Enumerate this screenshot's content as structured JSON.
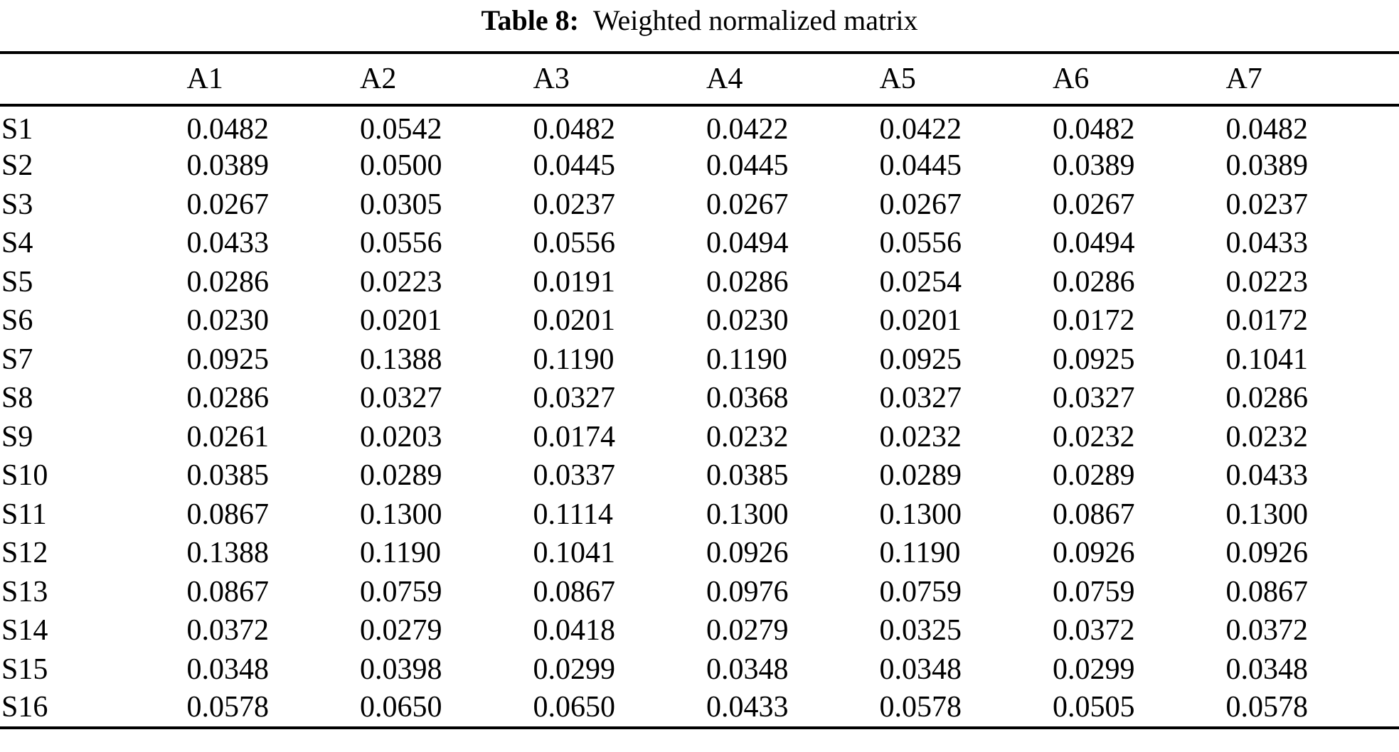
{
  "table": {
    "caption": {
      "label": "Table 8:",
      "text": "Weighted normalized matrix"
    },
    "columns": [
      "A1",
      "A2",
      "A3",
      "A4",
      "A5",
      "A6",
      "A7"
    ],
    "rows": [
      {
        "label": "S1",
        "values": [
          "0.0482",
          "0.0542",
          "0.0482",
          "0.0422",
          "0.0422",
          "0.0482",
          "0.0482"
        ]
      },
      {
        "label": "S2",
        "values": [
          "0.0389",
          "0.0500",
          "0.0445",
          "0.0445",
          "0.0445",
          "0.0389",
          "0.0389"
        ]
      },
      {
        "label": "S3",
        "values": [
          "0.0267",
          "0.0305",
          "0.0237",
          "0.0267",
          "0.0267",
          "0.0267",
          "0.0237"
        ]
      },
      {
        "label": "S4",
        "values": [
          "0.0433",
          "0.0556",
          "0.0556",
          "0.0494",
          "0.0556",
          "0.0494",
          "0.0433"
        ]
      },
      {
        "label": "S5",
        "values": [
          "0.0286",
          "0.0223",
          "0.0191",
          "0.0286",
          "0.0254",
          "0.0286",
          "0.0223"
        ]
      },
      {
        "label": "S6",
        "values": [
          "0.0230",
          "0.0201",
          "0.0201",
          "0.0230",
          "0.0201",
          "0.0172",
          "0.0172"
        ]
      },
      {
        "label": "S7",
        "values": [
          "0.0925",
          "0.1388",
          "0.1190",
          "0.1190",
          "0.0925",
          "0.0925",
          "0.1041"
        ]
      },
      {
        "label": "S8",
        "values": [
          "0.0286",
          "0.0327",
          "0.0327",
          "0.0368",
          "0.0327",
          "0.0327",
          "0.0286"
        ]
      },
      {
        "label": "S9",
        "values": [
          "0.0261",
          "0.0203",
          "0.0174",
          "0.0232",
          "0.0232",
          "0.0232",
          "0.0232"
        ]
      },
      {
        "label": "S10",
        "values": [
          "0.0385",
          "0.0289",
          "0.0337",
          "0.0385",
          "0.0289",
          "0.0289",
          "0.0433"
        ]
      },
      {
        "label": "S11",
        "values": [
          "0.0867",
          "0.1300",
          "0.1114",
          "0.1300",
          "0.1300",
          "0.0867",
          "0.1300"
        ]
      },
      {
        "label": "S12",
        "values": [
          "0.1388",
          "0.1190",
          "0.1041",
          "0.0926",
          "0.1190",
          "0.0926",
          "0.0926"
        ]
      },
      {
        "label": "S13",
        "values": [
          "0.0867",
          "0.0759",
          "0.0867",
          "0.0976",
          "0.0759",
          "0.0759",
          "0.0867"
        ]
      },
      {
        "label": "S14",
        "values": [
          "0.0372",
          "0.0279",
          "0.0418",
          "0.0279",
          "0.0325",
          "0.0372",
          "0.0372"
        ]
      },
      {
        "label": "S15",
        "values": [
          "0.0348",
          "0.0398",
          "0.0299",
          "0.0348",
          "0.0348",
          "0.0299",
          "0.0348"
        ]
      },
      {
        "label": "S16",
        "values": [
          "0.0578",
          "0.0650",
          "0.0650",
          "0.0433",
          "0.0578",
          "0.0505",
          "0.0578"
        ]
      }
    ]
  }
}
